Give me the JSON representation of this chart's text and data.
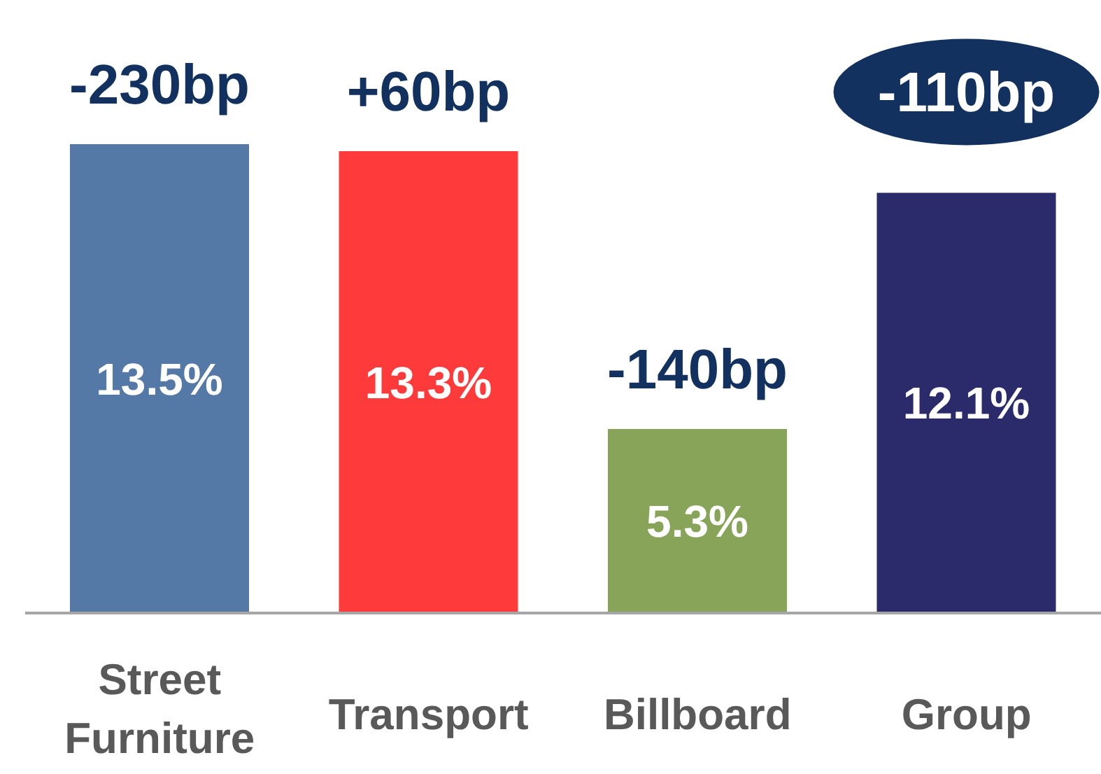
{
  "chart_data": {
    "type": "bar",
    "categories": [
      "Street Furniture",
      "Transport",
      "Billboard",
      "Group"
    ],
    "values": [
      13.5,
      13.3,
      5.3,
      12.1
    ],
    "colors": [
      "#5479a7",
      "#ff3a3a",
      "#88a458",
      "#2b2b6b"
    ],
    "value_labels": [
      "13.5%",
      "13.3%",
      "5.3%",
      "12.1%"
    ],
    "annotations": [
      {
        "text": "-230bp",
        "x": "Street Furniture",
        "y": 13.5
      },
      {
        "text": "+60bp",
        "x": "Transport",
        "y": 13.3
      },
      {
        "text": "-140bp",
        "x": "Billboard",
        "y": 5.3
      },
      {
        "text": "-110bp",
        "x": "Group",
        "y": 12.1
      }
    ]
  }
}
